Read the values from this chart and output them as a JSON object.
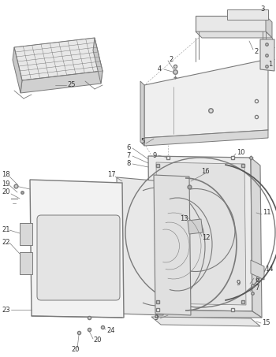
{
  "bg_color": "#ffffff",
  "fig_w": 3.5,
  "fig_h": 4.53,
  "dpi": 100,
  "lc": "#7a7a7a",
  "lc_dark": "#555555",
  "face_light": "#f2f2f2",
  "face_mid": "#e0e0e0",
  "face_dark": "#cccccc",
  "tc": "#333333",
  "fs": 6.0
}
